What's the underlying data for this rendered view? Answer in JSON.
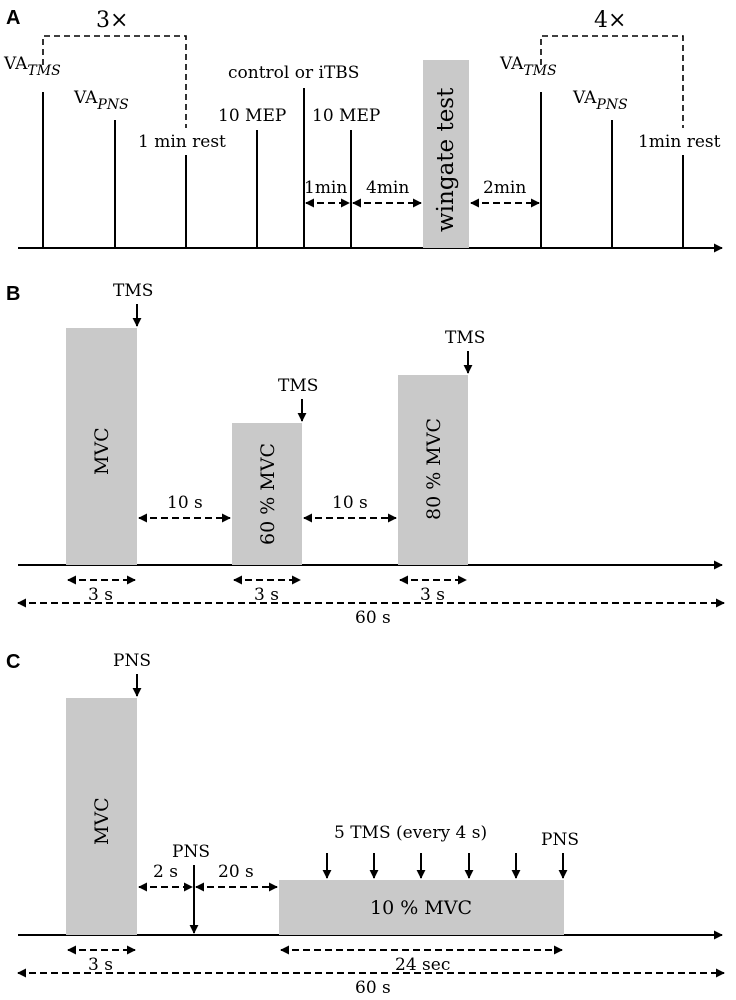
{
  "panels": {
    "a": {
      "letter": "A",
      "repeat_left": "3×",
      "repeat_right": "4×",
      "va_tms": "VA",
      "va_tms_sub": "TMS",
      "va_pns": "VA",
      "va_pns_sub": "PNS",
      "rest1": "1 min rest",
      "mep1": "10 MEP",
      "intervention": "control or iTBS",
      "mep2": "10 MEP",
      "wingate": "wingate test",
      "va_tms2": "VA",
      "va_tms2_sub": "TMS",
      "va_pns2": "VA",
      "va_pns2_sub": "PNS",
      "rest2": "1min rest",
      "gap_1min": "1min",
      "gap_4min": "4min",
      "gap_2min": "2min"
    },
    "b": {
      "letter": "B",
      "tms": "TMS",
      "mvc": "MVC",
      "mvc60": "60 % MVC",
      "mvc80": "80 % MVC",
      "gap1": "10 s",
      "gap2": "10 s",
      "dur1": "3 s",
      "dur2": "3 s",
      "dur3": "3 s",
      "total": "60 s"
    },
    "c": {
      "letter": "C",
      "pns": "PNS",
      "mvc": "MVC",
      "gap1": "2 s",
      "gap2": "20 s",
      "tms_train": "5 TMS (every 4 s)",
      "mvc10": "10 % MVC",
      "dur1": "3 s",
      "dur2": "24 sec",
      "total": "60 s"
    }
  },
  "colors": {
    "block": "#c9c9c9",
    "line": "#000000",
    "background": "#ffffff"
  }
}
